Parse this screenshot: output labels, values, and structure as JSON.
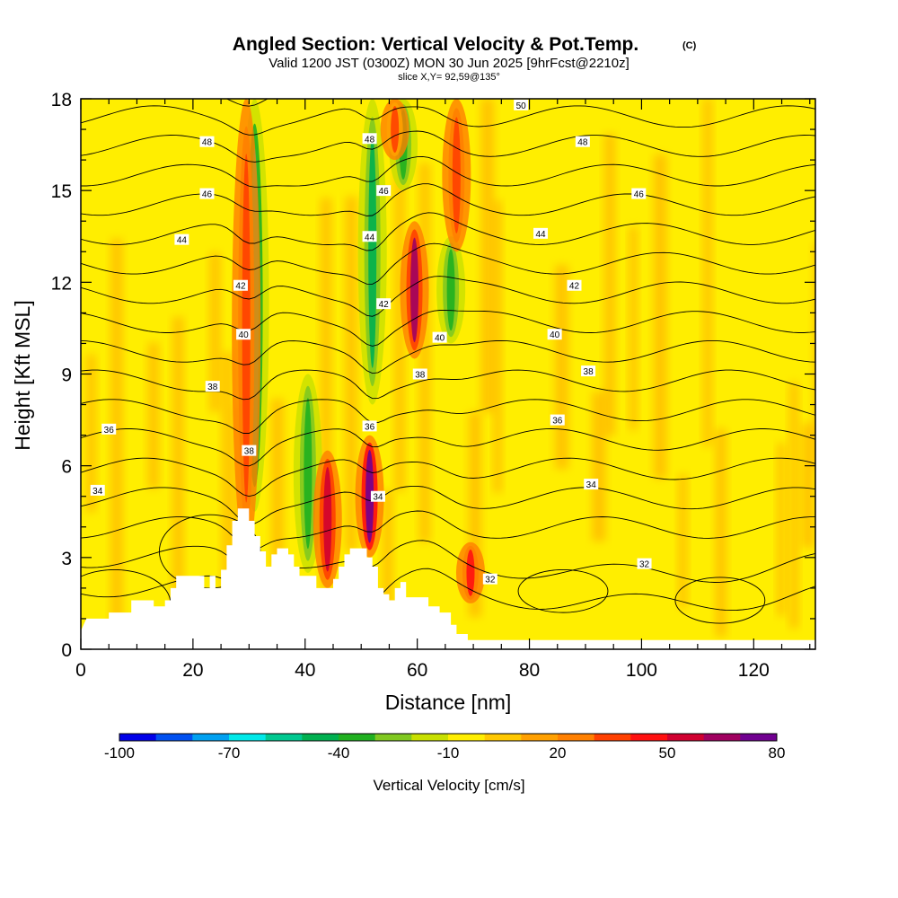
{
  "header": {
    "title": "Angled Section: Vertical Velocity & Pot.Temp.",
    "title_mark": "(C)",
    "valid_line": "Valid 1200 JST (0300Z) MON 30 Jun 2025 [9hrFcst@2210z]",
    "slice_line": "slice X,Y= 92,59@135°"
  },
  "chart_data": {
    "type": "heatmap",
    "title": "Angled Section: Vertical Velocity & Pot.Temp.",
    "xlabel": "Distance [nm]",
    "ylabel": "Height [Kft MSL]",
    "xlim": [
      0,
      131
    ],
    "ylim": [
      0,
      18
    ],
    "x_ticks": [
      0,
      20,
      40,
      60,
      80,
      100,
      120
    ],
    "y_ticks": [
      0,
      3,
      6,
      9,
      12,
      15,
      18
    ],
    "colorbar": {
      "title": "Vertical Velocity [cm/s]",
      "min": -100,
      "max": 80,
      "tick_values": [
        -100,
        -70,
        -40,
        -10,
        20,
        50,
        80
      ],
      "tick_labels": [
        "-100",
        "-70",
        "-40",
        "-10",
        "20",
        "50",
        "80"
      ],
      "colors": [
        "#0000e8",
        "#0050f0",
        "#00a0f0",
        "#00e8e8",
        "#00c890",
        "#00b050",
        "#20b020",
        "#80c820",
        "#c8e000",
        "#ffee00",
        "#ffc800",
        "#ffa000",
        "#ff8000",
        "#ff4000",
        "#ff1010",
        "#d00030",
        "#a00060",
        "#700090"
      ]
    },
    "background_level_color": "#ffee00",
    "updrafts": [
      {
        "x": 29.5,
        "y0": 3.0,
        "y1": 18,
        "value": 35
      },
      {
        "x": 44,
        "y0": 2.0,
        "y1": 6.5,
        "value": 50
      },
      {
        "x": 51.5,
        "y0": 3.0,
        "y1": 7.0,
        "value": 70
      },
      {
        "x": 59.5,
        "y0": 9.5,
        "y1": 14.0,
        "value": 60
      },
      {
        "x": 69.5,
        "y0": 1.5,
        "y1": 3.5,
        "value": 45
      },
      {
        "x": 67,
        "y0": 13.0,
        "y1": 18,
        "value": 35
      },
      {
        "x": 56,
        "y0": 16.0,
        "y1": 18,
        "value": 30
      }
    ],
    "downdrafts": [
      {
        "x": 31,
        "y0": 4.5,
        "y1": 18,
        "value": -60
      },
      {
        "x": 40.5,
        "y0": 2.5,
        "y1": 9.0,
        "value": -40
      },
      {
        "x": 52,
        "y0": 8.0,
        "y1": 18,
        "value": -50
      },
      {
        "x": 66,
        "y0": 10.0,
        "y1": 13.5,
        "value": -40
      },
      {
        "x": 57.5,
        "y0": 15.0,
        "y1": 18,
        "value": -40
      }
    ],
    "theta_contours": [
      {
        "value": 32,
        "label": "32",
        "label_x": 73,
        "label_y": 2.3
      },
      {
        "value": 32,
        "label": "32",
        "label_x": 100.5,
        "label_y": 2.8
      },
      {
        "value": 34,
        "label": "34",
        "label_x": 3,
        "label_y": 5.2
      },
      {
        "value": 34,
        "label": "34",
        "label_x": 53,
        "label_y": 5.0
      },
      {
        "value": 34,
        "label": "34",
        "label_x": 91,
        "label_y": 5.4
      },
      {
        "value": 36,
        "label": "36",
        "label_x": 5,
        "label_y": 7.2
      },
      {
        "value": 36,
        "label": "36",
        "label_x": 51.5,
        "label_y": 7.3
      },
      {
        "value": 36,
        "label": "36",
        "label_x": 85,
        "label_y": 7.5
      },
      {
        "value": 38,
        "label": "38",
        "label_x": 30,
        "label_y": 6.5
      },
      {
        "value": 38,
        "label": "38",
        "label_x": 23.5,
        "label_y": 8.6
      },
      {
        "value": 38,
        "label": "38",
        "label_x": 60.5,
        "label_y": 9.0
      },
      {
        "value": 38,
        "label": "38",
        "label_x": 90.5,
        "label_y": 9.1
      },
      {
        "value": 40,
        "label": "40",
        "label_x": 29,
        "label_y": 10.3
      },
      {
        "value": 40,
        "label": "40",
        "label_x": 64,
        "label_y": 10.2
      },
      {
        "value": 40,
        "label": "40",
        "label_x": 84.5,
        "label_y": 10.3
      },
      {
        "value": 42,
        "label": "42",
        "label_x": 28.5,
        "label_y": 11.9
      },
      {
        "value": 42,
        "label": "42",
        "label_x": 54,
        "label_y": 11.3
      },
      {
        "value": 42,
        "label": "42",
        "label_x": 88,
        "label_y": 11.9
      },
      {
        "value": 44,
        "label": "44",
        "label_x": 18,
        "label_y": 13.4
      },
      {
        "value": 44,
        "label": "44",
        "label_x": 51.5,
        "label_y": 13.5
      },
      {
        "value": 44,
        "label": "44",
        "label_x": 82,
        "label_y": 13.6
      },
      {
        "value": 46,
        "label": "46",
        "label_x": 22.5,
        "label_y": 14.9
      },
      {
        "value": 46,
        "label": "46",
        "label_x": 54,
        "label_y": 15.0
      },
      {
        "value": 46,
        "label": "46",
        "label_x": 99.5,
        "label_y": 14.9
      },
      {
        "value": 48,
        "label": "48",
        "label_x": 22.5,
        "label_y": 16.6
      },
      {
        "value": 48,
        "label": "48",
        "label_x": 51.5,
        "label_y": 16.7
      },
      {
        "value": 48,
        "label": "48",
        "label_x": 89.5,
        "label_y": 16.6
      },
      {
        "value": 50,
        "label": "50",
        "label_x": 78.5,
        "label_y": 17.8
      }
    ],
    "terrain": [
      [
        0,
        0.6
      ],
      [
        1,
        1.0
      ],
      [
        5,
        1.0
      ],
      [
        5,
        1.2
      ],
      [
        9,
        1.2
      ],
      [
        9,
        1.6
      ],
      [
        13,
        1.6
      ],
      [
        13,
        1.4
      ],
      [
        15,
        1.4
      ],
      [
        15,
        1.6
      ],
      [
        16,
        1.6
      ],
      [
        16,
        2.0
      ],
      [
        17,
        2.0
      ],
      [
        17,
        2.4
      ],
      [
        22,
        2.4
      ],
      [
        22,
        2.0
      ],
      [
        23,
        2.0
      ],
      [
        23,
        2.4
      ],
      [
        24,
        2.4
      ],
      [
        24,
        2.0
      ],
      [
        25,
        2.0
      ],
      [
        25,
        2.6
      ],
      [
        26,
        2.6
      ],
      [
        26,
        3.4
      ],
      [
        27,
        3.4
      ],
      [
        27,
        4.2
      ],
      [
        28,
        4.2
      ],
      [
        28,
        4.6
      ],
      [
        30,
        4.6
      ],
      [
        30,
        4.2
      ],
      [
        31,
        4.2
      ],
      [
        31,
        3.7
      ],
      [
        32,
        3.7
      ],
      [
        32,
        3.2
      ],
      [
        33,
        3.2
      ],
      [
        33,
        2.7
      ],
      [
        34,
        2.7
      ],
      [
        34,
        3.1
      ],
      [
        35,
        3.1
      ],
      [
        35,
        3.3
      ],
      [
        37,
        3.3
      ],
      [
        37,
        3.1
      ],
      [
        38,
        3.1
      ],
      [
        38,
        2.7
      ],
      [
        39,
        2.7
      ],
      [
        39,
        2.4
      ],
      [
        42,
        2.4
      ],
      [
        42,
        2.0
      ],
      [
        45,
        2.0
      ],
      [
        45,
        2.3
      ],
      [
        46,
        2.3
      ],
      [
        46,
        2.7
      ],
      [
        47,
        2.7
      ],
      [
        47,
        3.1
      ],
      [
        48,
        3.1
      ],
      [
        48,
        3.3
      ],
      [
        51,
        3.3
      ],
      [
        51,
        3.0
      ],
      [
        52,
        3.0
      ],
      [
        52,
        2.7
      ],
      [
        53,
        2.7
      ],
      [
        53,
        2.0
      ],
      [
        54,
        2.0
      ],
      [
        54,
        1.8
      ],
      [
        55,
        1.8
      ],
      [
        55,
        1.6
      ],
      [
        56,
        1.6
      ],
      [
        56,
        2.0
      ],
      [
        57,
        2.0
      ],
      [
        57,
        2.2
      ],
      [
        58,
        2.2
      ],
      [
        58,
        1.7
      ],
      [
        62,
        1.7
      ],
      [
        62,
        1.4
      ],
      [
        64,
        1.4
      ],
      [
        64,
        1.2
      ],
      [
        66,
        1.2
      ],
      [
        66,
        0.8
      ],
      [
        67,
        0.8
      ],
      [
        67,
        0.5
      ],
      [
        69,
        0.5
      ],
      [
        69,
        0.3
      ],
      [
        131,
        0.3
      ]
    ]
  }
}
